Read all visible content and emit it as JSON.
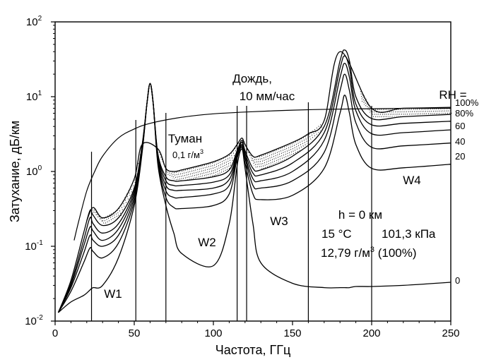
{
  "chart_data": {
    "type": "line",
    "xlabel": "Частота, ГГц",
    "ylabel": "Затухание, дБ/км",
    "xlim": [
      0,
      250
    ],
    "ylim": [
      0.01,
      100
    ],
    "yscale": "log",
    "x_ticks": [
      "0",
      "50",
      "100",
      "150",
      "200",
      "250"
    ],
    "y_ticks": [
      {
        "base": "10",
        "exp": "-2"
      },
      {
        "base": "10",
        "exp": "-1"
      },
      {
        "base": "10",
        "exp": "0"
      },
      {
        "base": "10",
        "exp": "1"
      },
      {
        "base": "10",
        "exp": "2"
      }
    ],
    "x": [
      2,
      10,
      18,
      22,
      24,
      30,
      40,
      50,
      55,
      58,
      60,
      62,
      65,
      70,
      75,
      80,
      100,
      110,
      115,
      118,
      120,
      125,
      130,
      150,
      170,
      180,
      183,
      186,
      190,
      200,
      220,
      250
    ],
    "rh_curves": [
      {
        "label": "0",
        "values": [
          0.013,
          0.018,
          0.022,
          0.026,
          0.028,
          0.03,
          0.07,
          0.35,
          1.8,
          8.0,
          15.0,
          8.0,
          1.2,
          0.35,
          0.15,
          0.08,
          0.055,
          0.2,
          1.2,
          2.0,
          1.1,
          0.2,
          0.06,
          0.032,
          0.028,
          0.028,
          0.028,
          0.028,
          0.029,
          0.029,
          0.03,
          0.033
        ]
      },
      {
        "label": "20",
        "values": [
          0.013,
          0.025,
          0.06,
          0.095,
          0.085,
          0.07,
          0.11,
          0.4,
          1.9,
          8.0,
          15.0,
          8.0,
          1.3,
          0.45,
          0.33,
          0.32,
          0.35,
          0.5,
          1.5,
          2.1,
          1.3,
          0.5,
          0.42,
          0.48,
          1.1,
          6.0,
          10.5,
          6.0,
          2.3,
          1.1,
          1.12,
          1.25
        ]
      },
      {
        "label": "40",
        "values": [
          0.013,
          0.028,
          0.08,
          0.14,
          0.12,
          0.1,
          0.14,
          0.45,
          2.0,
          8.0,
          15.0,
          8.0,
          1.4,
          0.55,
          0.45,
          0.45,
          0.5,
          0.65,
          1.6,
          2.2,
          1.5,
          0.65,
          0.6,
          0.75,
          1.8,
          12.0,
          20.0,
          12.0,
          4.5,
          2.1,
          2.2,
          2.4
        ]
      },
      {
        "label": "60",
        "values": [
          0.013,
          0.03,
          0.1,
          0.18,
          0.16,
          0.12,
          0.17,
          0.5,
          2.1,
          8.0,
          15.0,
          8.0,
          1.5,
          0.65,
          0.56,
          0.56,
          0.6,
          0.78,
          1.7,
          2.3,
          1.6,
          0.8,
          0.75,
          1.0,
          2.6,
          18.0,
          28.0,
          18.0,
          6.5,
          3.2,
          3.3,
          3.6
        ]
      },
      {
        "label": "80%",
        "values": [
          0.013,
          0.032,
          0.12,
          0.24,
          0.2,
          0.15,
          0.2,
          0.55,
          2.2,
          8.0,
          15.0,
          8.0,
          1.6,
          0.75,
          0.65,
          0.65,
          0.72,
          0.9,
          1.8,
          2.45,
          1.75,
          0.95,
          0.9,
          1.3,
          3.3,
          24.0,
          35.0,
          24.0,
          8.0,
          4.2,
          4.4,
          4.7
        ]
      },
      {
        "label": "100%",
        "values": [
          0.013,
          0.035,
          0.15,
          0.3,
          0.26,
          0.19,
          0.24,
          0.6,
          2.3,
          8.0,
          15.0,
          8.0,
          1.7,
          0.85,
          0.75,
          0.75,
          0.85,
          1.05,
          1.9,
          2.6,
          1.9,
          1.1,
          1.05,
          1.6,
          4.0,
          30.0,
          42.0,
          30.0,
          10.0,
          5.1,
          5.4,
          5.8
        ]
      }
    ],
    "fog_curve": {
      "label": "Туман",
      "x": [
        20,
        24,
        30,
        40,
        50,
        55,
        65,
        70,
        75,
        80,
        100,
        110,
        115,
        118,
        120,
        125,
        130,
        150,
        160,
        170,
        180,
        200,
        220,
        250
      ],
      "values": [
        0.22,
        0.33,
        0.24,
        0.32,
        0.8,
        2.3,
        2.0,
        1.1,
        1.0,
        1.05,
        1.35,
        1.7,
        2.3,
        2.8,
        2.3,
        1.6,
        1.65,
        2.45,
        3.2,
        4.8,
        40,
        7.0,
        7.0,
        7.2
      ]
    },
    "rain_curve": {
      "label": "Дождь",
      "x": [
        12,
        15,
        20,
        25,
        30,
        40,
        50,
        60,
        80,
        100,
        125,
        150,
        175,
        200,
        225,
        250
      ],
      "values": [
        0.12,
        0.22,
        0.55,
        1.0,
        1.6,
        2.8,
        3.7,
        4.4,
        5.3,
        5.9,
        6.3,
        6.6,
        6.8,
        6.9,
        7.0,
        7.0
      ]
    },
    "window_lines": [
      23,
      51,
      70,
      115,
      121,
      160,
      200
    ],
    "window_labels": [
      "W1",
      "W2",
      "W3",
      "W4"
    ],
    "rh_title": "RH =",
    "annotations": {
      "rain_label_1": "Дождь,",
      "rain_label_2": "10 мм/час",
      "fog_label": "Туман",
      "fog_density_num": "0,1 г/м",
      "fog_density_exp": "3",
      "cond_height": "h = 0 км",
      "cond_temp": "15 °C",
      "cond_pressure": "101,3  кПа",
      "cond_density_num": "12,79 г/м",
      "cond_density_exp": "3",
      "cond_density_suffix": " (100%)"
    }
  }
}
